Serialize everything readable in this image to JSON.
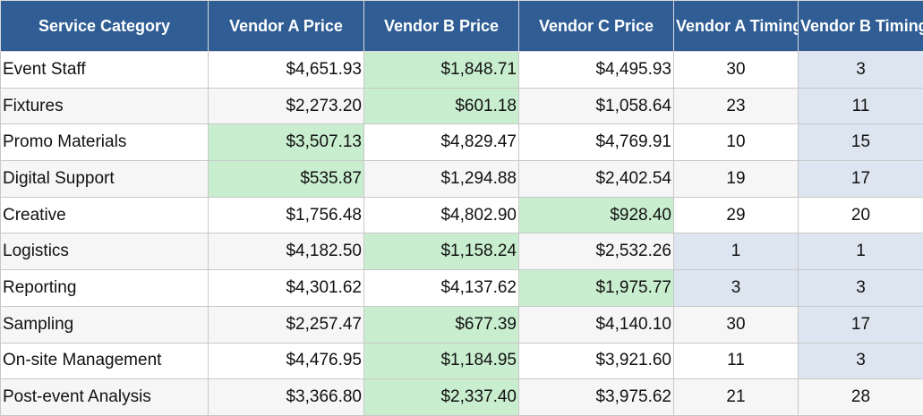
{
  "table": {
    "header": [
      "Service Category",
      "Vendor A Price",
      "Vendor B Price",
      "Vendor C Price",
      "Vendor A Timing",
      "Vendor B Timing"
    ],
    "rows": [
      [
        "Event Staff",
        "$4,651.93",
        "$1,848.71",
        "$4,495.93",
        "30",
        "3"
      ],
      [
        "Fixtures",
        "$2,273.20",
        "$601.18",
        "$1,058.64",
        "23",
        "11"
      ],
      [
        "Promo Materials",
        "$3,507.13",
        "$4,829.47",
        "$4,769.91",
        "10",
        "15"
      ],
      [
        "Digital Support",
        "$535.87",
        "$1,294.88",
        "$2,402.54",
        "19",
        "17"
      ],
      [
        "Creative",
        "$1,756.48",
        "$4,802.90",
        "$928.40",
        "29",
        "20"
      ],
      [
        "Logistics",
        "$4,182.50",
        "$1,158.24",
        "$2,532.26",
        "1",
        "1"
      ],
      [
        "Reporting",
        "$4,301.62",
        "$4,137.62",
        "$1,975.77",
        "3",
        "3"
      ],
      [
        "Sampling",
        "$2,257.47",
        "$677.39",
        "$4,140.10",
        "30",
        "17"
      ],
      [
        "On-site Management",
        "$4,476.95",
        "$1,184.95",
        "$3,921.60",
        "11",
        "3"
      ],
      [
        "Post-event Analysis",
        "$3,366.80",
        "$2,337.40",
        "$3,975.62",
        "21",
        "28"
      ]
    ]
  }
}
